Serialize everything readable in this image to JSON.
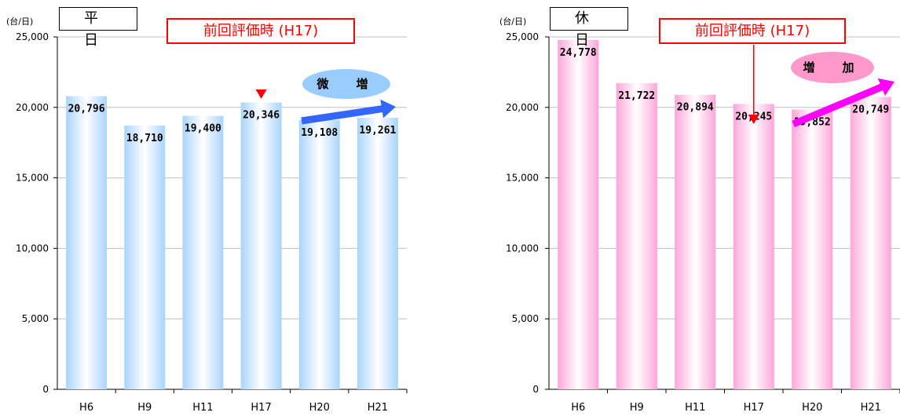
{
  "chart_data": [
    {
      "type": "bar",
      "title": "平　日",
      "unit_label": "(台/日)",
      "categories": [
        "H6",
        "H9",
        "H11",
        "H17",
        "H20",
        "H21"
      ],
      "values": [
        20796,
        18710,
        19400,
        20346,
        19108,
        19261
      ],
      "data_labels": [
        "20,796",
        "18,710",
        "19,400",
        "20,346",
        "19,108",
        "19,261"
      ],
      "ylim": [
        0,
        25000
      ],
      "yticks": [
        "0",
        "5,000",
        "10,000",
        "15,000",
        "20,000",
        "25,000"
      ],
      "ytick_values": [
        0,
        5000,
        10000,
        15000,
        20000,
        25000
      ],
      "grid": true,
      "bar_color": "#a9d4fb",
      "annotations": {
        "previous_eval": "前回評価時 (H17)",
        "previous_eval_category": "H17",
        "trend": "微　増",
        "trend_color": "#3366ff",
        "badge_color": "#99ccff"
      }
    },
    {
      "type": "bar",
      "title": "休　日",
      "unit_label": "(台/日)",
      "categories": [
        "H6",
        "H9",
        "H11",
        "H17",
        "H20",
        "H21"
      ],
      "values": [
        24778,
        21722,
        20894,
        20245,
        19852,
        20749
      ],
      "data_labels": [
        "24,778",
        "21,722",
        "20,894",
        "20,245",
        "19,852",
        "20,749"
      ],
      "ylim": [
        0,
        25000
      ],
      "yticks": [
        "0",
        "5,000",
        "10,000",
        "15,000",
        "20,000",
        "25,000"
      ],
      "ytick_values": [
        0,
        5000,
        10000,
        15000,
        20000,
        25000
      ],
      "grid": true,
      "bar_color": "#ffa6d9",
      "annotations": {
        "previous_eval": "前回評価時 (H17)",
        "previous_eval_category": "H17",
        "trend": "増　加",
        "trend_color": "#ff00ff",
        "badge_color": "#ff99cc"
      }
    }
  ]
}
